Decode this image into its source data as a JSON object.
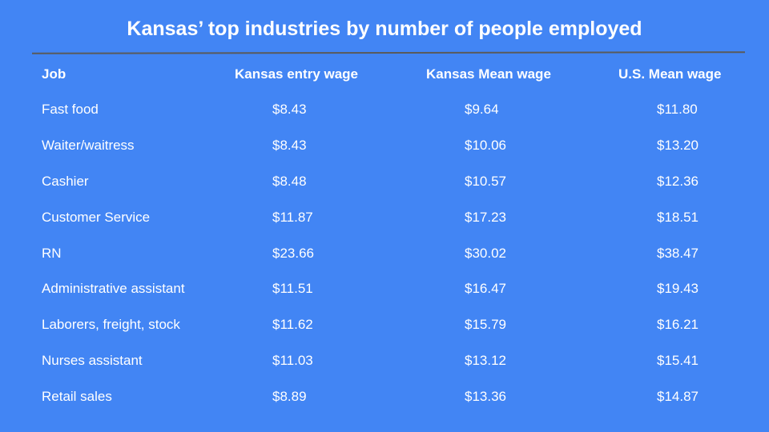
{
  "title": "Kansas’ top industries by number of people employed",
  "table": {
    "headers": [
      "Job",
      "Kansas entry wage",
      "Kansas Mean wage",
      "U.S. Mean wage"
    ],
    "rows": [
      [
        "Fast food",
        "$8.43",
        "$9.64",
        "$11.80"
      ],
      [
        "Waiter/waitress",
        "$8.43",
        "$10.06",
        "$13.20"
      ],
      [
        "Cashier",
        "$8.48",
        "$10.57",
        "$12.36"
      ],
      [
        "Customer Service",
        "$11.87",
        "$17.23",
        "$18.51"
      ],
      [
        "RN",
        "$23.66",
        "$30.02",
        "$38.47"
      ],
      [
        "Administrative assistant",
        "$11.51",
        "$16.47",
        "$19.43"
      ],
      [
        "Laborers, freight, stock",
        "$11.62",
        "$15.79",
        "$16.21"
      ],
      [
        "Nurses assistant",
        "$11.03",
        "$13.12",
        "$15.41"
      ],
      [
        "Retail sales",
        "$8.89",
        "$13.36",
        "$14.87"
      ]
    ]
  },
  "colors": {
    "background": "#4285f4",
    "text": "#ffffff",
    "rule": "#5a5a5a"
  }
}
